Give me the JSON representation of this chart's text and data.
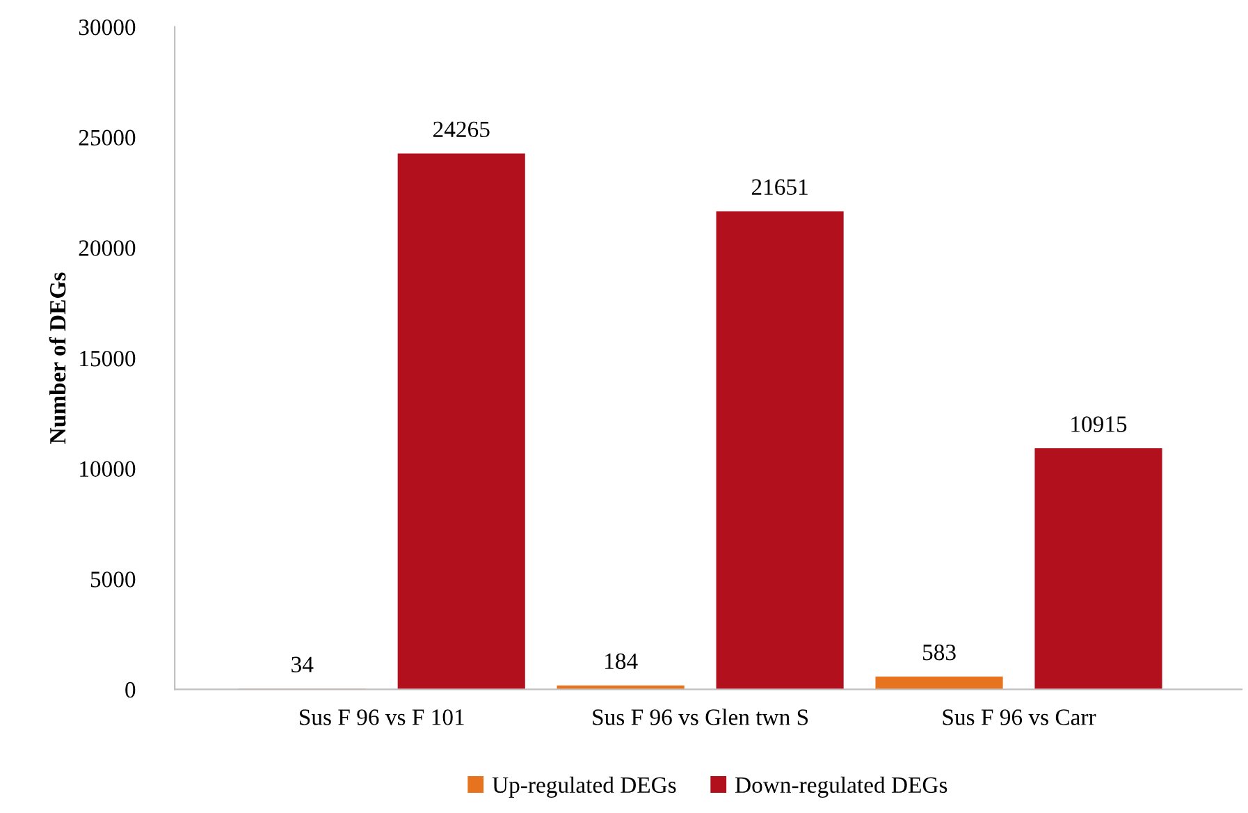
{
  "chart_data": {
    "type": "bar",
    "ylabel": "Number of DEGs",
    "categories": [
      "Sus F 96 vs F 101",
      "Sus F 96 vs Glen twn S",
      "Sus F 96 vs Carr"
    ],
    "series": [
      {
        "name": "Up-regulated DEGs",
        "color": "#e8731e",
        "values": [
          34,
          184,
          583
        ]
      },
      {
        "name": "Down-regulated DEGs",
        "color": "#b3101e",
        "values": [
          24265,
          21651,
          10915
        ]
      }
    ],
    "ylim": [
      0,
      30000
    ],
    "yticks": [
      0,
      5000,
      10000,
      15000,
      20000,
      25000,
      30000
    ],
    "grid": false,
    "legend": "bottom",
    "data_labels": true
  }
}
